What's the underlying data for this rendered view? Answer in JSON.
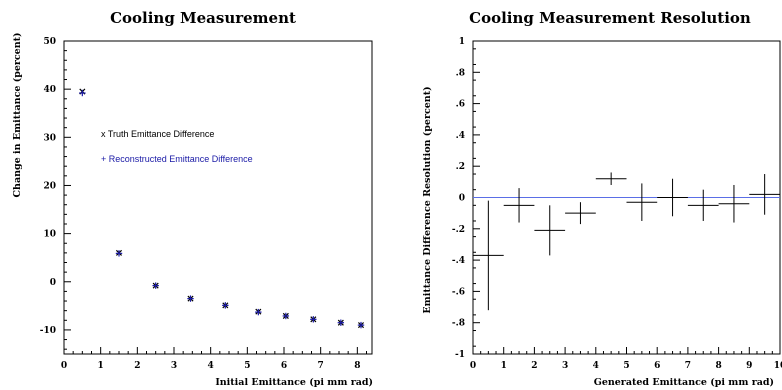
{
  "chart_data": [
    {
      "type": "scatter",
      "title": "Cooling Measurement",
      "xlabel": "Initial Emittance (pi mm rad)",
      "ylabel": "Change in Emittance (percent)",
      "xlim": [
        0,
        8.4
      ],
      "ylim": [
        -15,
        50
      ],
      "xticks": [
        0,
        1,
        2,
        3,
        4,
        5,
        6,
        7,
        8
      ],
      "yticks": [
        -10,
        0,
        10,
        20,
        30,
        40,
        50
      ],
      "grid": false,
      "legend_position": "center-right",
      "series": [
        {
          "name": "x Truth Emittance Difference",
          "marker": "x",
          "color": "#000000",
          "x": [
            0.5,
            1.5,
            2.5,
            3.45,
            4.4,
            5.3,
            6.05,
            6.8,
            7.55,
            8.1
          ],
          "y": [
            39.5,
            6,
            -0.8,
            -3.5,
            -4.9,
            -6.2,
            -7.1,
            -7.8,
            -8.5,
            -9
          ]
        },
        {
          "name": "+ Reconstructed Emittance Difference",
          "marker": "+",
          "color": "#1a1aa6",
          "x": [
            0.5,
            1.5,
            2.5,
            3.45,
            4.4,
            5.3,
            6.05,
            6.8,
            7.55,
            8.1
          ],
          "y": [
            39.2,
            5.9,
            -0.8,
            -3.5,
            -4.9,
            -6.3,
            -7.1,
            -7.8,
            -8.5,
            -9
          ]
        }
      ]
    },
    {
      "type": "scatter",
      "title": "Cooling Measurement Resolution",
      "xlabel": "Generated Emittance (pi mm rad)",
      "ylabel": "Emittance Difference Resolution (percent)",
      "xlim": [
        0,
        10
      ],
      "ylim": [
        -1,
        1
      ],
      "xticks": [
        0,
        1,
        2,
        3,
        4,
        5,
        6,
        7,
        8,
        9,
        10
      ],
      "yticks": [
        -1,
        -0.8,
        -0.6,
        -0.4,
        -0.2,
        0,
        0.2,
        0.4,
        0.6,
        0.8,
        1
      ],
      "grid": false,
      "reference_line": {
        "y": 0,
        "color": "#5a6ee6"
      },
      "series": [
        {
          "marker": "errorbar",
          "color": "#000000",
          "x": [
            0.5,
            1.5,
            2.5,
            3.5,
            4.5,
            5.5,
            6.5,
            7.5,
            8.5,
            9.5
          ],
          "y": [
            -0.37,
            -0.05,
            -0.21,
            -0.1,
            0.12,
            -0.03,
            0,
            -0.05,
            -0.04,
            0.02
          ],
          "yerr": [
            0.35,
            0.11,
            0.16,
            0.07,
            0.04,
            0.12,
            0.12,
            0.1,
            0.12,
            0.13
          ]
        }
      ]
    }
  ]
}
